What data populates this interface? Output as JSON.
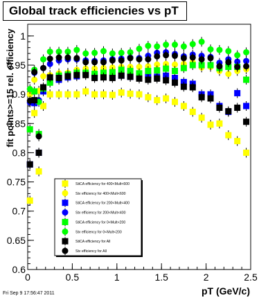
{
  "title": "Global track efficiencies vs pT",
  "footer": "Fri Sep  9 17:56:47 2011",
  "chart_data": {
    "type": "scatter",
    "xlabel": "pT (GeV/c)",
    "ylabel": "fit points>=15 rel. efficiency",
    "xlim": [
      0,
      2.5
    ],
    "ylim": [
      0.6,
      1.02
    ],
    "xticks": [
      "0",
      "0.5",
      "1",
      "1.5",
      "2",
      "2.5"
    ],
    "yticks": [
      "0.6",
      "0.65",
      "0.7",
      "0.75",
      "0.8",
      "0.85",
      "0.9",
      "0.95",
      "1"
    ],
    "x": [
      0.025,
      0.075,
      0.125,
      0.175,
      0.25,
      0.35,
      0.45,
      0.55,
      0.65,
      0.75,
      0.85,
      0.95,
      1.05,
      1.15,
      1.25,
      1.35,
      1.45,
      1.55,
      1.65,
      1.75,
      1.85,
      1.95,
      2.05,
      2.15,
      2.25,
      2.35,
      2.45
    ],
    "legend_position": "bottom-left",
    "series": [
      {
        "name": "StiCA efficiency  for 400<Mult<600",
        "color": "#ffff00",
        "marker": "square",
        "values": [
          0.718,
          0.868,
          0.768,
          0.88,
          0.9,
          0.9,
          0.9,
          0.9,
          0.905,
          0.9,
          0.9,
          0.899,
          0.903,
          0.901,
          0.9,
          0.895,
          0.89,
          0.893,
          0.887,
          0.88,
          0.87,
          0.86,
          0.848,
          0.85,
          0.83,
          0.82,
          0.8
        ]
      },
      {
        "name": "Stv efficiency  for 400<Mult<600",
        "color": "#ffff00",
        "marker": "circle",
        "values": [
          0.9,
          0.925,
          0.906,
          0.931,
          0.933,
          0.936,
          0.937,
          0.942,
          0.944,
          0.944,
          0.945,
          0.946,
          0.947,
          0.947,
          0.947,
          0.948,
          0.951,
          0.952,
          0.951,
          0.952,
          0.955,
          0.946,
          0.947,
          0.94,
          0.935,
          0.94,
          0.943
        ]
      },
      {
        "name": "StiCA efficiency  for 200<Mult<400",
        "color": "#0000ff",
        "marker": "square",
        "values": [
          0.78,
          0.885,
          0.8,
          0.905,
          0.922,
          0.925,
          0.929,
          0.931,
          0.935,
          0.93,
          0.932,
          0.93,
          0.932,
          0.93,
          0.934,
          0.932,
          0.93,
          0.932,
          0.928,
          0.921,
          0.918,
          0.9,
          0.9,
          0.88,
          0.87,
          0.902,
          0.88
        ]
      },
      {
        "name": "Stv efficiency  for 200<Mult<400",
        "color": "#0000ff",
        "marker": "circle",
        "values": [
          0.886,
          0.937,
          0.89,
          0.945,
          0.952,
          0.958,
          0.96,
          0.96,
          0.958,
          0.957,
          0.958,
          0.96,
          0.961,
          0.963,
          0.962,
          0.966,
          0.971,
          0.972,
          0.969,
          0.965,
          0.968,
          0.966,
          0.964,
          0.954,
          0.96,
          0.956,
          0.957
        ]
      },
      {
        "name": "StiCA efficiency  for 0<Mult<200",
        "color": "#00ff00",
        "marker": "square",
        "values": [
          0.84,
          0.905,
          0.832,
          0.91,
          0.92,
          0.932,
          0.934,
          0.937,
          0.937,
          0.935,
          0.937,
          0.938,
          0.942,
          0.94,
          0.936,
          0.94,
          0.941,
          0.944,
          0.94,
          0.945,
          0.95,
          0.95,
          0.95,
          0.945,
          0.947,
          0.947,
          0.925
        ]
      },
      {
        "name": "Stv efficiency  for 0<Mult<200",
        "color": "#00ff00",
        "marker": "circle",
        "values": [
          0.909,
          0.942,
          0.887,
          0.96,
          0.973,
          0.973,
          0.973,
          0.976,
          0.97,
          0.971,
          0.974,
          0.97,
          0.971,
          0.972,
          0.978,
          0.983,
          0.982,
          0.985,
          0.985,
          0.982,
          0.986,
          0.99,
          0.977,
          0.976,
          0.974,
          0.967,
          0.972
        ]
      },
      {
        "name": "StiCA efficiency  for All",
        "color": "#000000",
        "marker": "square",
        "values": [
          0.78,
          0.89,
          0.8,
          0.912,
          0.929,
          0.928,
          0.931,
          0.933,
          0.933,
          0.928,
          0.929,
          0.928,
          0.932,
          0.93,
          0.927,
          0.925,
          0.927,
          0.924,
          0.92,
          0.913,
          0.912,
          0.895,
          0.893,
          0.877,
          0.871,
          0.877,
          0.853
        ]
      },
      {
        "name": "Stv efficiency  for All",
        "color": "#000000",
        "marker": "circle",
        "values": [
          0.889,
          0.938,
          0.828,
          0.945,
          0.961,
          0.963,
          0.963,
          0.962,
          0.955,
          0.955,
          0.955,
          0.958,
          0.958,
          0.962,
          0.96,
          0.96,
          0.965,
          0.967,
          0.966,
          0.962,
          0.963,
          0.96,
          0.962,
          0.948,
          0.955,
          0.947,
          0.948
        ]
      }
    ]
  }
}
